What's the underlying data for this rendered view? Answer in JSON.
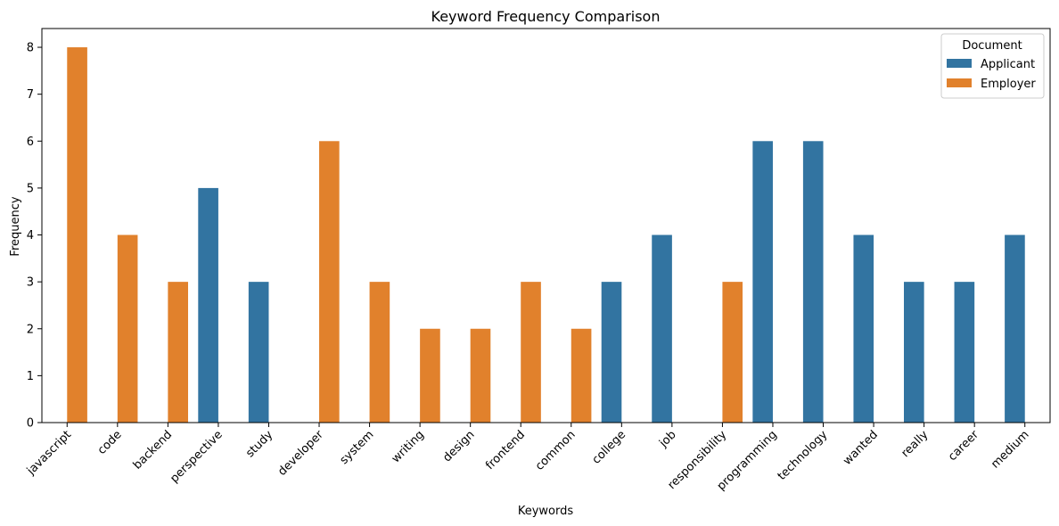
{
  "chart_data": {
    "type": "bar",
    "title": "Keyword Frequency Comparison",
    "xlabel": "Keywords",
    "ylabel": "Frequency",
    "ylim": [
      0,
      8.4
    ],
    "yticks": [
      0,
      1,
      2,
      3,
      4,
      5,
      6,
      7,
      8
    ],
    "categories": [
      "javascript",
      "code",
      "backend",
      "perspective",
      "study",
      "developer",
      "system",
      "writing",
      "design",
      "frontend",
      "common",
      "college",
      "job",
      "responsibility",
      "programming",
      "technology",
      "wanted",
      "really",
      "career",
      "medium"
    ],
    "legend": {
      "title": "Document",
      "position": "top-right"
    },
    "series": [
      {
        "name": "Applicant",
        "color": "#3274a1",
        "values": [
          null,
          null,
          null,
          5,
          3,
          null,
          null,
          null,
          null,
          null,
          null,
          3,
          4,
          null,
          6,
          6,
          4,
          3,
          3,
          4
        ]
      },
      {
        "name": "Employer",
        "color": "#e1812c",
        "values": [
          8,
          4,
          3,
          null,
          null,
          6,
          3,
          2,
          2,
          3,
          2,
          null,
          null,
          3,
          null,
          null,
          null,
          null,
          null,
          null
        ]
      }
    ]
  }
}
